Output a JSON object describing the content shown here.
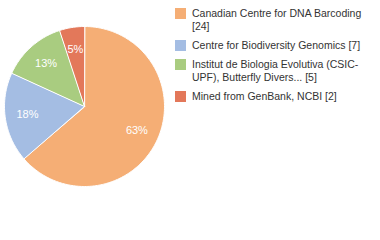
{
  "chart_data": {
    "type": "pie",
    "categories": [
      "Canadian Centre for DNA Barcoding [24]",
      "Centre for Biodiversity Genomics [7]",
      "Institut de Biologia Evolutiva (CSIC-UPF), Butterfly Divers... [5]",
      "Mined from GenBank, NCBI [2]"
    ],
    "values": [
      63,
      18,
      13,
      5
    ],
    "value_labels": [
      "63%",
      "18%",
      "13%",
      "5%"
    ],
    "colors": [
      "#f5ae75",
      "#a4bde3",
      "#a9cc80",
      "#e3785a"
    ],
    "data_labels": true,
    "legend": "right"
  }
}
